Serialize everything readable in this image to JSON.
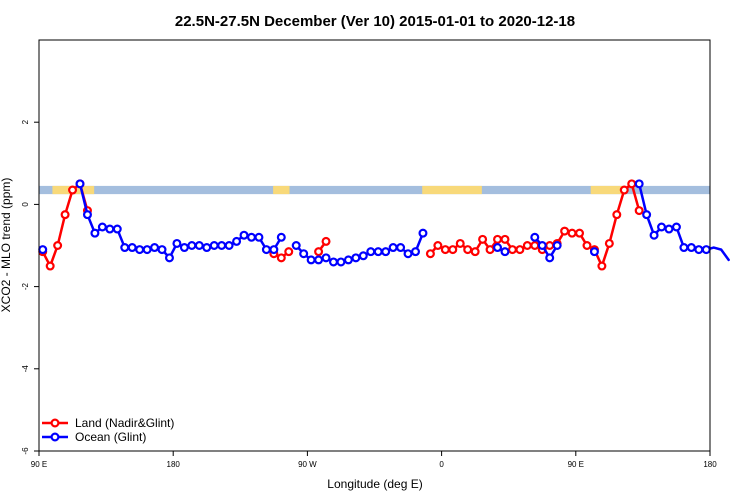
{
  "chart_data": {
    "type": "line",
    "title": "22.5N-27.5N December (Ver 10)   2015-01-01 to 2020-12-18",
    "xlabel": "Longitude (deg E)",
    "ylabel": "XCO2 - MLO trend (ppm)",
    "xlim": [
      90,
      540
    ],
    "ylim": [
      -6,
      4
    ],
    "x_ticks": [
      {
        "value": 90,
        "label": "90 E"
      },
      {
        "value": 180,
        "label": "180"
      },
      {
        "value": 270,
        "label": "90 W"
      },
      {
        "value": 360,
        "label": "0"
      },
      {
        "value": 450,
        "label": "90 E"
      },
      {
        "value": 540,
        "label": "180"
      }
    ],
    "y_ticks": [
      -6,
      -4,
      -2,
      0,
      2
    ],
    "legend_position": "bottom-left",
    "map_band": {
      "y_range": [
        0.25,
        0.45
      ],
      "ocean_color": "#a4bede",
      "land_color": "#f8d97a",
      "land_x_ranges": [
        [
          99,
          127
        ],
        [
          247,
          258
        ],
        [
          347,
          387
        ],
        [
          460,
          482
        ]
      ]
    },
    "series": [
      {
        "name": "Land (Nadir&Glint)",
        "color": "#ff0000",
        "points": [
          [
            92.5,
            -1.15
          ],
          [
            97.5,
            -1.5
          ],
          [
            102.5,
            -1.0
          ],
          [
            107.5,
            -0.25
          ],
          [
            112.5,
            0.35
          ],
          [
            117.5,
            0.5
          ],
          [
            122.5,
            -0.15
          ],
          null,
          [
            247.5,
            -1.2
          ],
          [
            252.5,
            -1.3
          ],
          [
            257.5,
            -1.15
          ],
          null,
          [
            277.5,
            -1.15
          ],
          [
            282.5,
            -0.9
          ],
          null,
          [
            352.5,
            -1.2
          ],
          [
            357.5,
            -1.0
          ],
          [
            362.5,
            -1.1
          ],
          [
            367.5,
            -1.1
          ],
          [
            372.5,
            -0.95
          ],
          [
            377.5,
            -1.1
          ],
          [
            382.5,
            -1.15
          ],
          [
            387.5,
            -0.85
          ],
          [
            392.5,
            -1.1
          ],
          [
            397.5,
            -0.85
          ],
          [
            402.5,
            -0.85
          ],
          [
            407.5,
            -1.1
          ],
          [
            412.5,
            -1.1
          ],
          [
            417.5,
            -1.0
          ],
          [
            422.5,
            -1.0
          ],
          [
            427.5,
            -1.1
          ],
          [
            432.5,
            -1.0
          ],
          [
            437.5,
            -0.95
          ],
          [
            442.5,
            -0.65
          ],
          [
            447.5,
            -0.7
          ],
          [
            452.5,
            -0.7
          ],
          [
            457.5,
            -1.0
          ],
          [
            462.5,
            -1.1
          ],
          [
            467.5,
            -1.5
          ],
          [
            472.5,
            -0.95
          ],
          [
            477.5,
            -0.25
          ],
          [
            482.5,
            0.35
          ],
          [
            487.5,
            0.5
          ],
          [
            492.5,
            -0.15
          ]
        ]
      },
      {
        "name": "Ocean (Glint)",
        "color": "#0000ff",
        "points": [
          [
            92.5,
            -1.1
          ],
          null,
          [
            117.5,
            0.5
          ],
          [
            122.5,
            -0.25
          ],
          [
            127.5,
            -0.7
          ],
          [
            132.5,
            -0.55
          ],
          [
            137.5,
            -0.6
          ],
          [
            142.5,
            -0.6
          ],
          [
            147.5,
            -1.05
          ],
          [
            152.5,
            -1.05
          ],
          [
            157.5,
            -1.1
          ],
          [
            162.5,
            -1.1
          ],
          [
            167.5,
            -1.05
          ],
          [
            172.5,
            -1.1
          ],
          [
            177.5,
            -1.3
          ],
          [
            182.5,
            -0.95
          ],
          [
            187.5,
            -1.05
          ],
          [
            192.5,
            -1.0
          ],
          [
            197.5,
            -1.0
          ],
          [
            202.5,
            -1.05
          ],
          [
            207.5,
            -1.0
          ],
          [
            212.5,
            -1.0
          ],
          [
            217.5,
            -1.0
          ],
          [
            222.5,
            -0.9
          ],
          [
            227.5,
            -0.75
          ],
          [
            232.5,
            -0.8
          ],
          [
            237.5,
            -0.8
          ],
          [
            242.5,
            -1.1
          ],
          [
            247.5,
            -1.1
          ],
          [
            252.5,
            -0.8
          ],
          null,
          [
            262.5,
            -1.0
          ],
          [
            267.5,
            -1.2
          ],
          [
            272.5,
            -1.35
          ],
          [
            277.5,
            -1.35
          ],
          [
            282.5,
            -1.3
          ],
          [
            287.5,
            -1.4
          ],
          [
            292.5,
            -1.4
          ],
          [
            297.5,
            -1.35
          ],
          [
            302.5,
            -1.3
          ],
          [
            307.5,
            -1.25
          ],
          [
            312.5,
            -1.15
          ],
          [
            317.5,
            -1.15
          ],
          [
            322.5,
            -1.15
          ],
          [
            327.5,
            -1.05
          ],
          [
            332.5,
            -1.05
          ],
          [
            337.5,
            -1.2
          ],
          [
            342.5,
            -1.15
          ],
          [
            347.5,
            -0.7
          ],
          null,
          [
            397.5,
            -1.05
          ],
          [
            402.5,
            -1.15
          ],
          null,
          [
            422.5,
            -0.8
          ],
          [
            427.5,
            -1.0
          ],
          [
            432.5,
            -1.3
          ],
          [
            437.5,
            -1.0
          ],
          null,
          [
            462.5,
            -1.15
          ],
          null,
          [
            492.5,
            0.5
          ],
          [
            497.5,
            -0.25
          ],
          [
            502.5,
            -0.75
          ],
          [
            507.5,
            -0.55
          ],
          [
            512.5,
            -0.6
          ],
          [
            517.5,
            -0.55
          ],
          [
            522.5,
            -1.05
          ],
          [
            527.5,
            -1.05
          ],
          [
            532.5,
            -1.1
          ],
          [
            537.5,
            -1.1
          ],
          [
            542.5,
            -1.05
          ],
          [
            547.5,
            -1.1
          ],
          [
            552.5,
            -1.35
          ]
        ]
      }
    ]
  }
}
